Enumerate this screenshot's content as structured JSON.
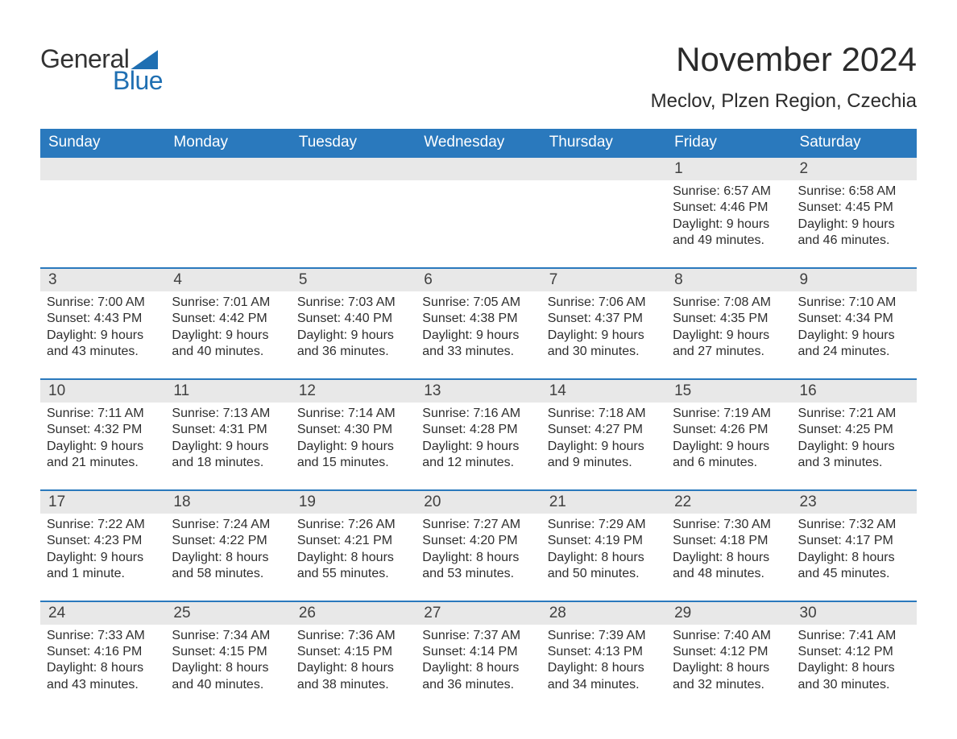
{
  "logo": {
    "word1": "General",
    "word2": "Blue"
  },
  "title": "November 2024",
  "location": "Meclov, Plzen Region, Czechia",
  "colors": {
    "header_bg": "#2a79bd",
    "header_text": "#ffffff",
    "daynum_bg": "#e8e8e8",
    "row_border": "#2a79bd",
    "logo_accent": "#1f6fb2",
    "body_text": "#2e2e2e",
    "page_bg": "#ffffff"
  },
  "day_names": [
    "Sunday",
    "Monday",
    "Tuesday",
    "Wednesday",
    "Thursday",
    "Friday",
    "Saturday"
  ],
  "weeks": [
    [
      {
        "num": "",
        "sunrise": "",
        "sunset": "",
        "daylight": ""
      },
      {
        "num": "",
        "sunrise": "",
        "sunset": "",
        "daylight": ""
      },
      {
        "num": "",
        "sunrise": "",
        "sunset": "",
        "daylight": ""
      },
      {
        "num": "",
        "sunrise": "",
        "sunset": "",
        "daylight": ""
      },
      {
        "num": "",
        "sunrise": "",
        "sunset": "",
        "daylight": ""
      },
      {
        "num": "1",
        "sunrise": "Sunrise: 6:57 AM",
        "sunset": "Sunset: 4:46 PM",
        "daylight": "Daylight: 9 hours and 49 minutes."
      },
      {
        "num": "2",
        "sunrise": "Sunrise: 6:58 AM",
        "sunset": "Sunset: 4:45 PM",
        "daylight": "Daylight: 9 hours and 46 minutes."
      }
    ],
    [
      {
        "num": "3",
        "sunrise": "Sunrise: 7:00 AM",
        "sunset": "Sunset: 4:43 PM",
        "daylight": "Daylight: 9 hours and 43 minutes."
      },
      {
        "num": "4",
        "sunrise": "Sunrise: 7:01 AM",
        "sunset": "Sunset: 4:42 PM",
        "daylight": "Daylight: 9 hours and 40 minutes."
      },
      {
        "num": "5",
        "sunrise": "Sunrise: 7:03 AM",
        "sunset": "Sunset: 4:40 PM",
        "daylight": "Daylight: 9 hours and 36 minutes."
      },
      {
        "num": "6",
        "sunrise": "Sunrise: 7:05 AM",
        "sunset": "Sunset: 4:38 PM",
        "daylight": "Daylight: 9 hours and 33 minutes."
      },
      {
        "num": "7",
        "sunrise": "Sunrise: 7:06 AM",
        "sunset": "Sunset: 4:37 PM",
        "daylight": "Daylight: 9 hours and 30 minutes."
      },
      {
        "num": "8",
        "sunrise": "Sunrise: 7:08 AM",
        "sunset": "Sunset: 4:35 PM",
        "daylight": "Daylight: 9 hours and 27 minutes."
      },
      {
        "num": "9",
        "sunrise": "Sunrise: 7:10 AM",
        "sunset": "Sunset: 4:34 PM",
        "daylight": "Daylight: 9 hours and 24 minutes."
      }
    ],
    [
      {
        "num": "10",
        "sunrise": "Sunrise: 7:11 AM",
        "sunset": "Sunset: 4:32 PM",
        "daylight": "Daylight: 9 hours and 21 minutes."
      },
      {
        "num": "11",
        "sunrise": "Sunrise: 7:13 AM",
        "sunset": "Sunset: 4:31 PM",
        "daylight": "Daylight: 9 hours and 18 minutes."
      },
      {
        "num": "12",
        "sunrise": "Sunrise: 7:14 AM",
        "sunset": "Sunset: 4:30 PM",
        "daylight": "Daylight: 9 hours and 15 minutes."
      },
      {
        "num": "13",
        "sunrise": "Sunrise: 7:16 AM",
        "sunset": "Sunset: 4:28 PM",
        "daylight": "Daylight: 9 hours and 12 minutes."
      },
      {
        "num": "14",
        "sunrise": "Sunrise: 7:18 AM",
        "sunset": "Sunset: 4:27 PM",
        "daylight": "Daylight: 9 hours and 9 minutes."
      },
      {
        "num": "15",
        "sunrise": "Sunrise: 7:19 AM",
        "sunset": "Sunset: 4:26 PM",
        "daylight": "Daylight: 9 hours and 6 minutes."
      },
      {
        "num": "16",
        "sunrise": "Sunrise: 7:21 AM",
        "sunset": "Sunset: 4:25 PM",
        "daylight": "Daylight: 9 hours and 3 minutes."
      }
    ],
    [
      {
        "num": "17",
        "sunrise": "Sunrise: 7:22 AM",
        "sunset": "Sunset: 4:23 PM",
        "daylight": "Daylight: 9 hours and 1 minute."
      },
      {
        "num": "18",
        "sunrise": "Sunrise: 7:24 AM",
        "sunset": "Sunset: 4:22 PM",
        "daylight": "Daylight: 8 hours and 58 minutes."
      },
      {
        "num": "19",
        "sunrise": "Sunrise: 7:26 AM",
        "sunset": "Sunset: 4:21 PM",
        "daylight": "Daylight: 8 hours and 55 minutes."
      },
      {
        "num": "20",
        "sunrise": "Sunrise: 7:27 AM",
        "sunset": "Sunset: 4:20 PM",
        "daylight": "Daylight: 8 hours and 53 minutes."
      },
      {
        "num": "21",
        "sunrise": "Sunrise: 7:29 AM",
        "sunset": "Sunset: 4:19 PM",
        "daylight": "Daylight: 8 hours and 50 minutes."
      },
      {
        "num": "22",
        "sunrise": "Sunrise: 7:30 AM",
        "sunset": "Sunset: 4:18 PM",
        "daylight": "Daylight: 8 hours and 48 minutes."
      },
      {
        "num": "23",
        "sunrise": "Sunrise: 7:32 AM",
        "sunset": "Sunset: 4:17 PM",
        "daylight": "Daylight: 8 hours and 45 minutes."
      }
    ],
    [
      {
        "num": "24",
        "sunrise": "Sunrise: 7:33 AM",
        "sunset": "Sunset: 4:16 PM",
        "daylight": "Daylight: 8 hours and 43 minutes."
      },
      {
        "num": "25",
        "sunrise": "Sunrise: 7:34 AM",
        "sunset": "Sunset: 4:15 PM",
        "daylight": "Daylight: 8 hours and 40 minutes."
      },
      {
        "num": "26",
        "sunrise": "Sunrise: 7:36 AM",
        "sunset": "Sunset: 4:15 PM",
        "daylight": "Daylight: 8 hours and 38 minutes."
      },
      {
        "num": "27",
        "sunrise": "Sunrise: 7:37 AM",
        "sunset": "Sunset: 4:14 PM",
        "daylight": "Daylight: 8 hours and 36 minutes."
      },
      {
        "num": "28",
        "sunrise": "Sunrise: 7:39 AM",
        "sunset": "Sunset: 4:13 PM",
        "daylight": "Daylight: 8 hours and 34 minutes."
      },
      {
        "num": "29",
        "sunrise": "Sunrise: 7:40 AM",
        "sunset": "Sunset: 4:12 PM",
        "daylight": "Daylight: 8 hours and 32 minutes."
      },
      {
        "num": "30",
        "sunrise": "Sunrise: 7:41 AM",
        "sunset": "Sunset: 4:12 PM",
        "daylight": "Daylight: 8 hours and 30 minutes."
      }
    ]
  ]
}
